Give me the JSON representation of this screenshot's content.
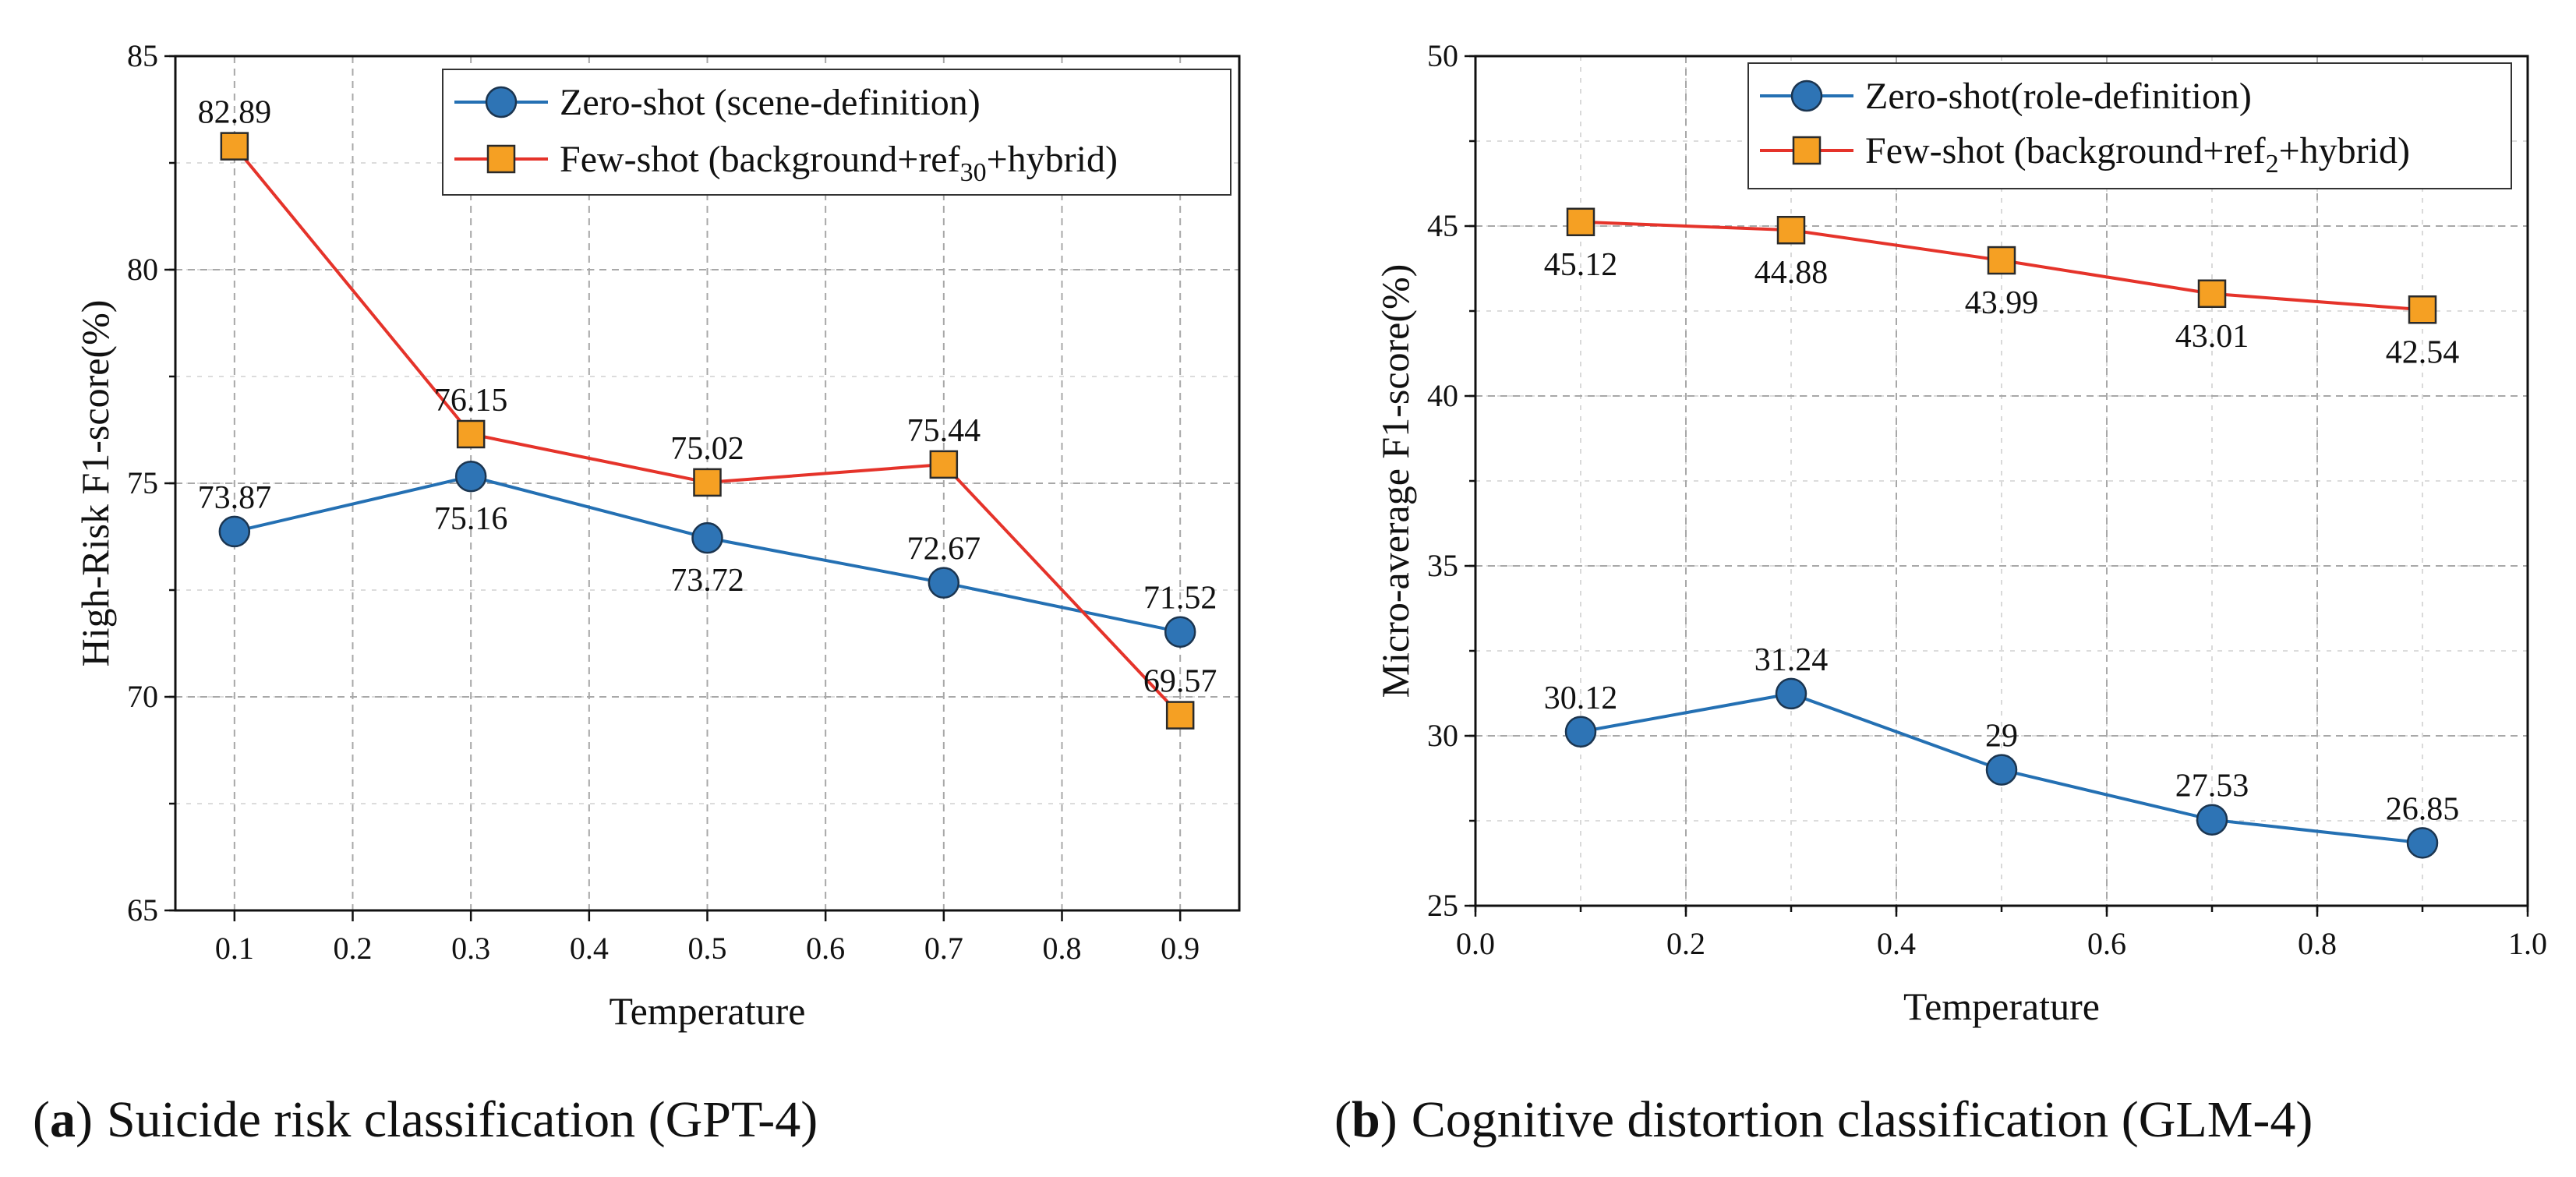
{
  "chart_data": [
    {
      "type": "line",
      "title": "",
      "xlabel": "Temperature",
      "ylabel": "High-Risk F1-score(%)",
      "xlim": [
        0.05,
        0.95
      ],
      "ylim": [
        65,
        85
      ],
      "x_ticks": [
        0.1,
        0.2,
        0.3,
        0.4,
        0.5,
        0.6,
        0.7,
        0.8,
        0.9
      ],
      "x_tick_labels": [
        "0.1",
        "0.2",
        "0.3",
        "0.4",
        "0.5",
        "0.6",
        "0.7",
        "0.8",
        "0.9"
      ],
      "y_ticks": [
        65,
        70,
        75,
        80,
        85
      ],
      "y_tick_labels": [
        "65",
        "70",
        "75",
        "80",
        "85"
      ],
      "grid": true,
      "legend_position": "top-right",
      "x": [
        0.1,
        0.3,
        0.5,
        0.7,
        0.9
      ],
      "series": [
        {
          "legend": {
            "prefix": "Zero-shot (scene-definition)",
            "sub": "",
            "suffix": ""
          },
          "marker": "circle",
          "line_color": "#2470b3",
          "marker_fill": "#2e74b5",
          "values": [
            73.87,
            75.16,
            73.72,
            72.67,
            71.52
          ],
          "labels": [
            "73.87",
            "75.16",
            "73.72",
            "72.67",
            "71.52"
          ]
        },
        {
          "legend": {
            "prefix": "Few-shot (background+ref",
            "sub": "30",
            "suffix": "+hybrid)"
          },
          "marker": "square",
          "line_color": "#e5332a",
          "marker_fill": "#f5a023",
          "values": [
            82.89,
            76.15,
            75.02,
            75.44,
            69.57
          ],
          "labels": [
            "82.89",
            "76.15",
            "75.02",
            "75.44",
            "69.57"
          ]
        }
      ]
    },
    {
      "type": "line",
      "title": "",
      "xlabel": "Temperature",
      "ylabel": "Micro-average F1-score(%)",
      "xlim": [
        0.0,
        1.0
      ],
      "ylim": [
        25,
        50
      ],
      "x_ticks": [
        0.0,
        0.2,
        0.4,
        0.6,
        0.8,
        1.0
      ],
      "x_tick_labels": [
        "0.0",
        "0.2",
        "0.4",
        "0.6",
        "0.8",
        "1.0"
      ],
      "y_ticks": [
        25,
        30,
        35,
        40,
        45,
        50
      ],
      "y_tick_labels": [
        "25",
        "30",
        "35",
        "40",
        "45",
        "50"
      ],
      "grid": true,
      "legend_position": "top-right",
      "x": [
        0.1,
        0.3,
        0.5,
        0.7,
        0.9
      ],
      "series": [
        {
          "legend": {
            "prefix": "Zero-shot(role-definition)",
            "sub": "",
            "suffix": ""
          },
          "marker": "circle",
          "line_color": "#2470b3",
          "marker_fill": "#2e74b5",
          "values": [
            30.12,
            31.24,
            29,
            27.53,
            26.85
          ],
          "labels": [
            "30.12",
            "31.24",
            "29",
            "27.53",
            "26.85"
          ]
        },
        {
          "legend": {
            "prefix": "Few-shot (background+ref",
            "sub": "2",
            "suffix": "+hybrid)"
          },
          "marker": "square",
          "line_color": "#e5332a",
          "marker_fill": "#f5a023",
          "values": [
            45.12,
            44.88,
            43.99,
            43.01,
            42.54
          ],
          "labels": [
            "45.12",
            "44.88",
            "43.99",
            "43.01",
            "42.54"
          ]
        }
      ]
    }
  ],
  "captions": [
    {
      "open": "(",
      "label": "a",
      "close": ")",
      "text": "Suicide risk classification (GPT-4)"
    },
    {
      "open": "(",
      "label": "b",
      "close": ")",
      "text": "Cognitive distortion classification (GLM-4)"
    }
  ]
}
